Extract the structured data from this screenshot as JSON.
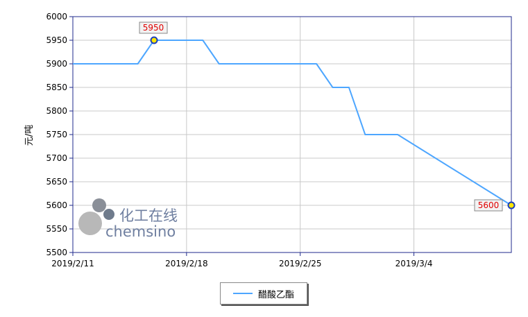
{
  "chart_data": {
    "type": "line",
    "ylabel": "元/吨",
    "xlabel": "",
    "ylim": [
      5500,
      6000
    ],
    "yticks": [
      5500,
      5550,
      5600,
      5650,
      5700,
      5750,
      5800,
      5850,
      5900,
      5950,
      6000
    ],
    "x_tick_labels": [
      "2019/2/11",
      "2019/2/18",
      "2019/2/25",
      "2019/3/4"
    ],
    "x_tick_dates": [
      "2019-02-11",
      "2019-02-18",
      "2019-02-25",
      "2019-03-04"
    ],
    "xlim": [
      "2019-02-11",
      "2019-03-10"
    ],
    "grid": true,
    "legend_placement": "bottom-center",
    "series": [
      {
        "name": "醋酸乙酯",
        "color": "#4da6ff",
        "points": [
          {
            "x": "2019-02-11",
            "y": 5900
          },
          {
            "x": "2019-02-15",
            "y": 5900
          },
          {
            "x": "2019-02-16",
            "y": 5950
          },
          {
            "x": "2019-02-19",
            "y": 5950
          },
          {
            "x": "2019-02-20",
            "y": 5900
          },
          {
            "x": "2019-02-26",
            "y": 5900
          },
          {
            "x": "2019-02-27",
            "y": 5850
          },
          {
            "x": "2019-02-28",
            "y": 5850
          },
          {
            "x": "2019-03-01",
            "y": 5750
          },
          {
            "x": "2019-03-03",
            "y": 5750
          },
          {
            "x": "2019-03-10",
            "y": 5600
          }
        ]
      }
    ],
    "annotations": [
      {
        "x": "2019-02-16",
        "y": 5950,
        "label": "5950"
      },
      {
        "x": "2019-03-10",
        "y": 5600,
        "label": "5600"
      }
    ]
  },
  "watermark": {
    "cn": "化工在线",
    "en": "chemsino"
  },
  "legend": {
    "label": "醋酸乙酯"
  },
  "colors": {
    "line": "#4da6ff",
    "axis": "#1f2a8c",
    "grid": "#c8c8c8",
    "marker_fill": "#ffe600",
    "marker_stroke": "#1a3fbf",
    "annotation_text": "#e00000"
  }
}
